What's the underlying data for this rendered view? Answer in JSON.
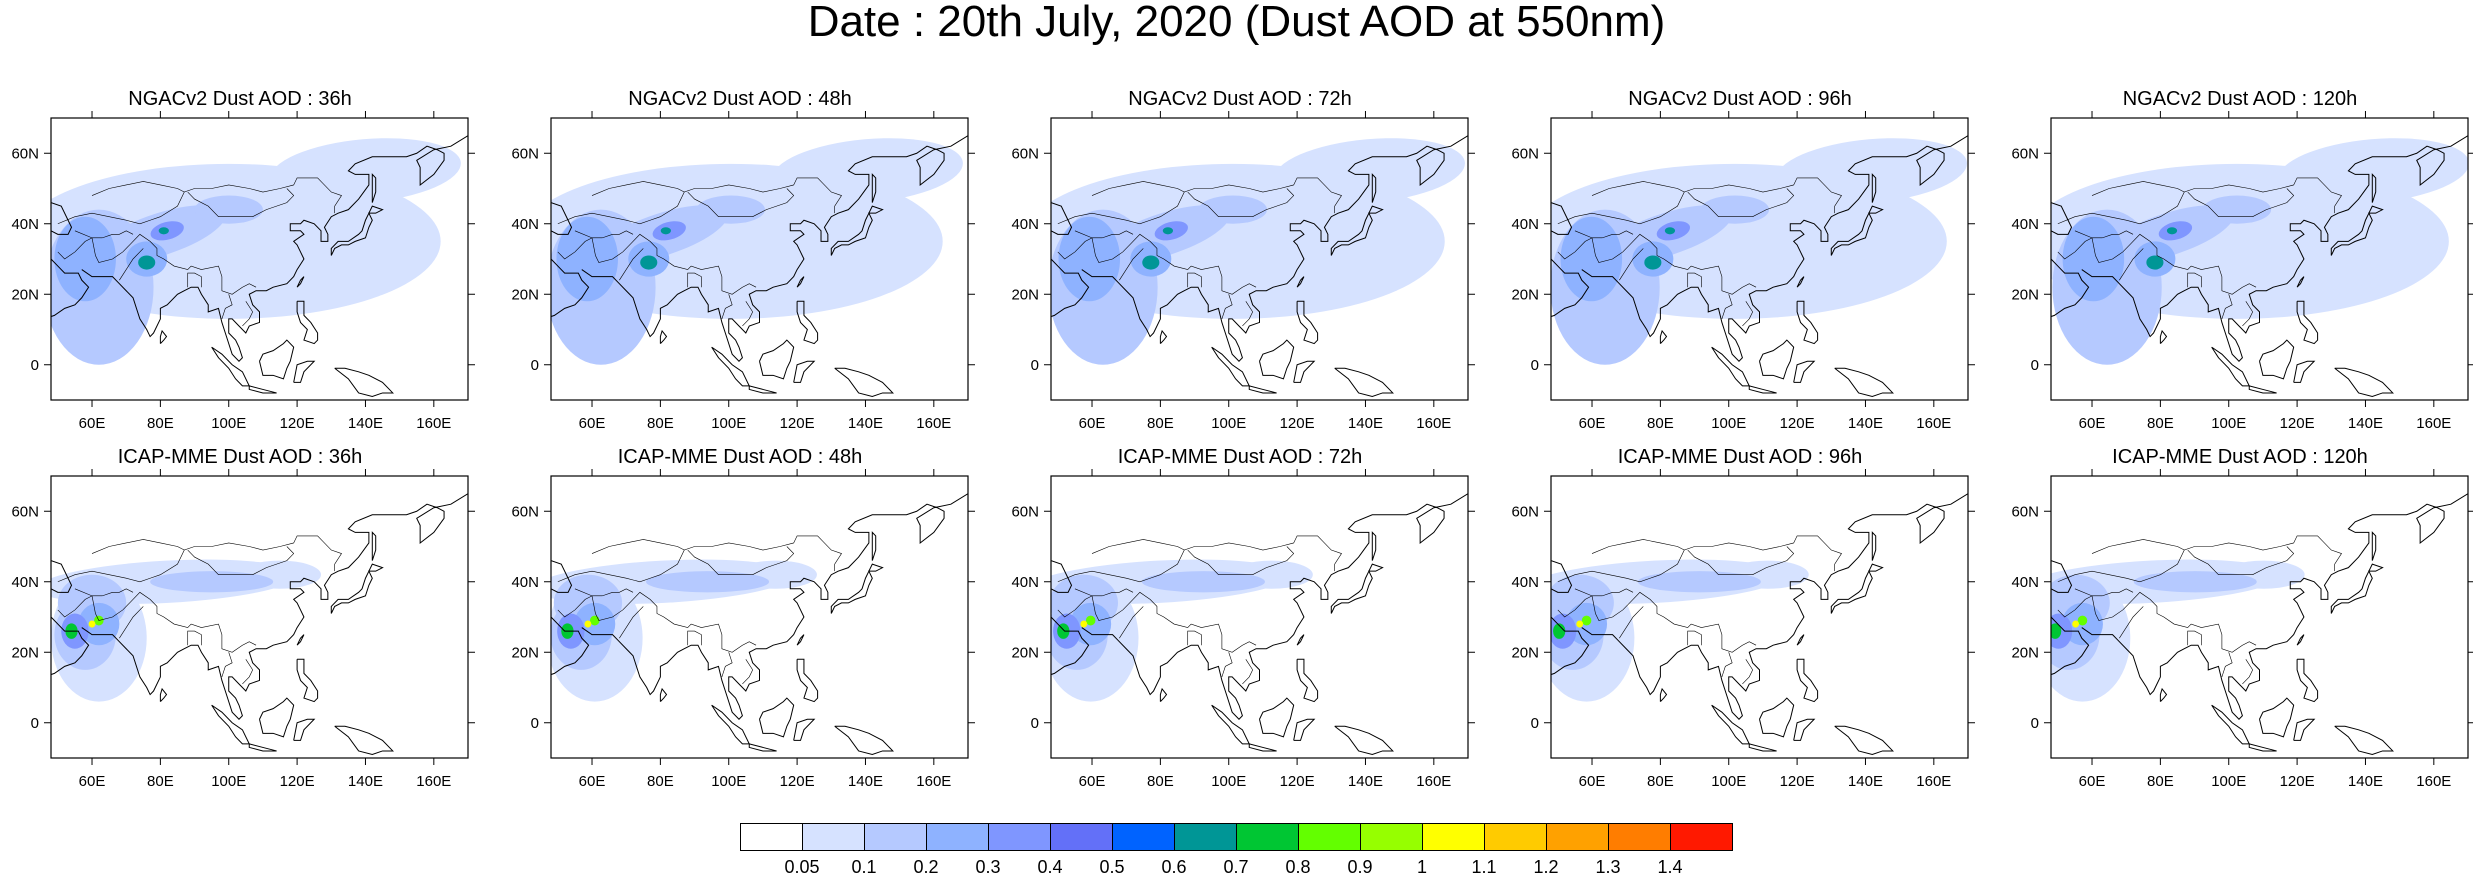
{
  "title": "Date : 20th July, 2020 (Dust AOD at 550nm)",
  "panels": [
    {
      "title": "NGACv2 Dust AOD : 36h",
      "model": "NGACv2",
      "lead": "36h"
    },
    {
      "title": "NGACv2 Dust AOD : 48h",
      "model": "NGACv2",
      "lead": "48h"
    },
    {
      "title": "NGACv2 Dust AOD : 72h",
      "model": "NGACv2",
      "lead": "72h"
    },
    {
      "title": "NGACv2 Dust AOD : 96h",
      "model": "NGACv2",
      "lead": "96h"
    },
    {
      "title": "NGACv2 Dust AOD : 120h",
      "model": "NGACv2",
      "lead": "120h"
    },
    {
      "title": "ICAP-MME Dust AOD : 36h",
      "model": "ICAP-MME",
      "lead": "36h"
    },
    {
      "title": "ICAP-MME Dust AOD : 48h",
      "model": "ICAP-MME",
      "lead": "48h"
    },
    {
      "title": "ICAP-MME Dust AOD : 72h",
      "model": "ICAP-MME",
      "lead": "72h"
    },
    {
      "title": "ICAP-MME Dust AOD : 96h",
      "model": "ICAP-MME",
      "lead": "96h"
    },
    {
      "title": "ICAP-MME Dust AOD : 120h",
      "model": "ICAP-MME",
      "lead": "120h"
    }
  ],
  "axes": {
    "lon_labels": [
      "60E",
      "80E",
      "100E",
      "120E",
      "140E",
      "160E"
    ],
    "lat_labels": [
      "60N",
      "40N",
      "20N",
      "0"
    ],
    "lon_range": [
      48,
      170
    ],
    "lat_range": [
      -10,
      70
    ]
  },
  "colorbar": {
    "colors": [
      "#ffffff",
      "#d6e2ff",
      "#b5c9ff",
      "#8eb2ff",
      "#7f96ff",
      "#6370f8",
      "#0063ff",
      "#009696",
      "#00c633",
      "#63ff00",
      "#96ff00",
      "#ffff00",
      "#ffcb00",
      "#ffa100",
      "#ff7d00",
      "#ff1900"
    ],
    "labels": [
      "0.05",
      "0.1",
      "0.2",
      "0.3",
      "0.4",
      "0.5",
      "0.6",
      "0.7",
      "0.8",
      "0.9",
      "1",
      "1.1",
      "1.2",
      "1.3",
      "1.4"
    ]
  }
}
